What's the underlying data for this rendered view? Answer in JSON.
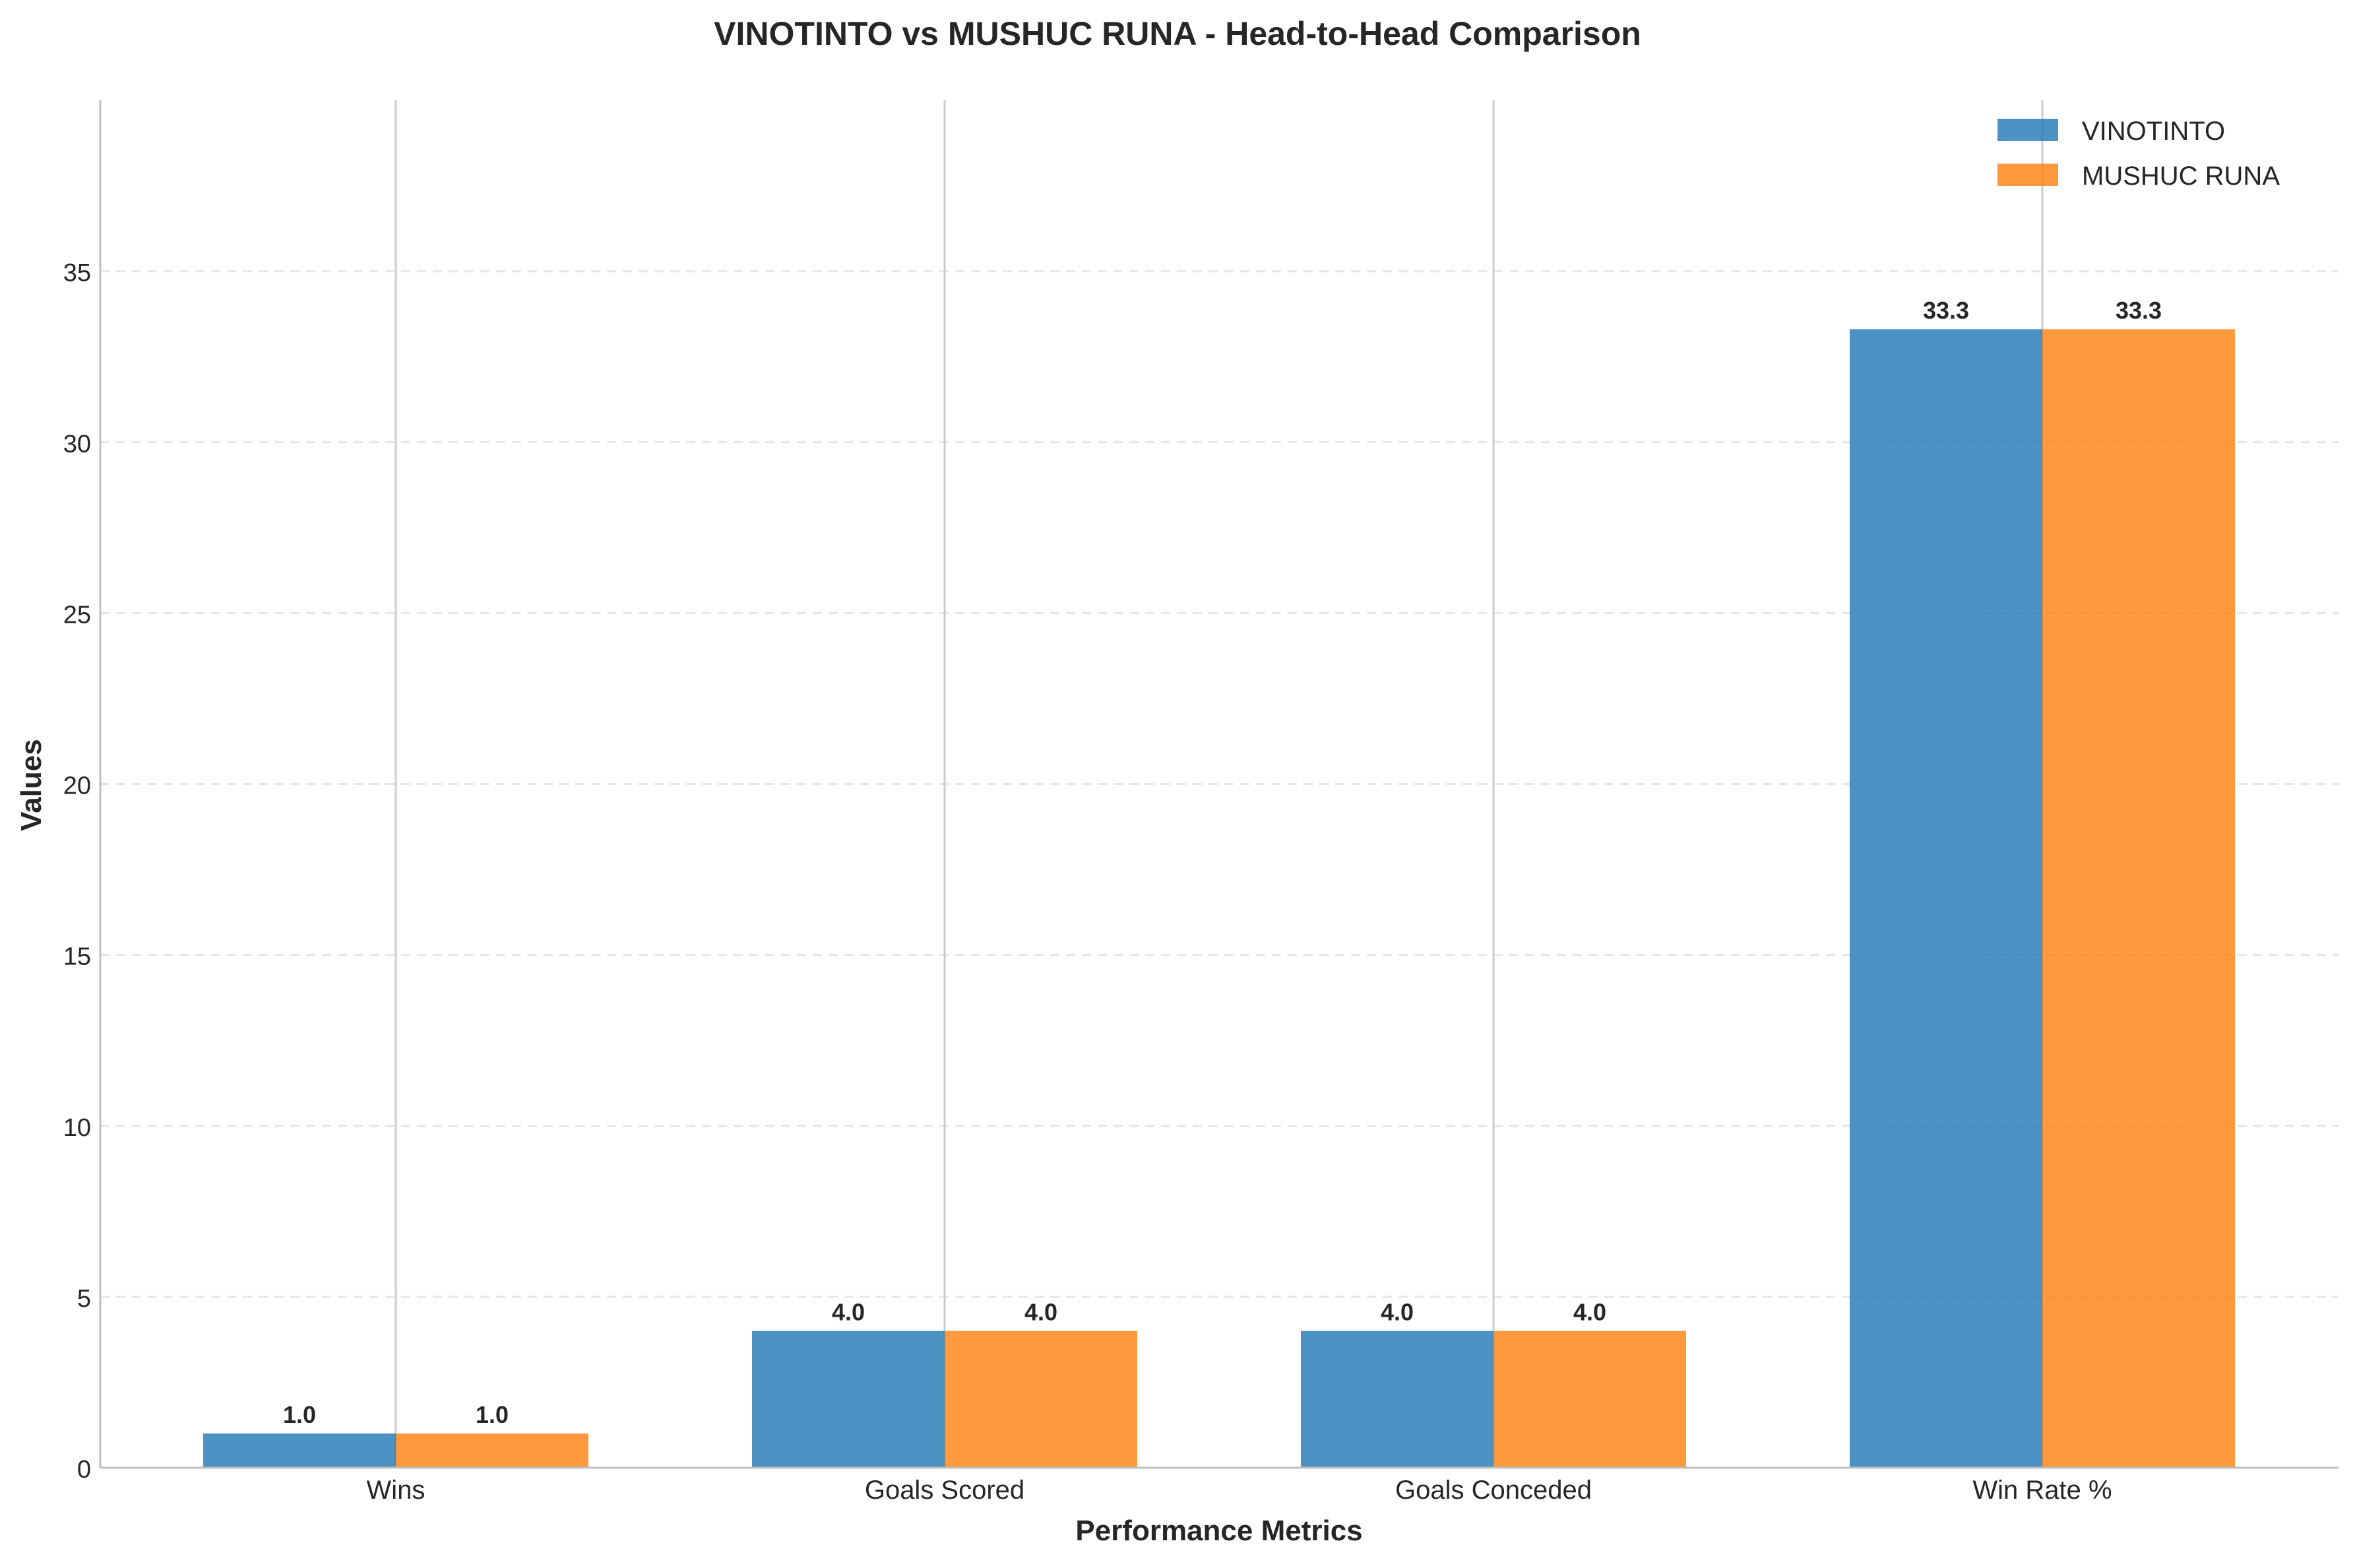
{
  "chart_data": {
    "type": "bar",
    "title": "VINOTINTO vs MUSHUC RUNA - Head-to-Head Comparison",
    "xlabel": "Performance Metrics",
    "ylabel": "Values",
    "categories": [
      "Wins",
      "Goals Scored",
      "Goals Conceded",
      "Win Rate %"
    ],
    "series": [
      {
        "name": "VINOTINTO",
        "values": [
          1.0,
          4.0,
          4.0,
          33.3
        ],
        "color": "#1f77b4"
      },
      {
        "name": "MUSHUC RUNA",
        "values": [
          1.0,
          4.0,
          4.0,
          33.3
        ],
        "color": "#ff7f0e"
      }
    ],
    "ylim": [
      0,
      40
    ],
    "yticks": [
      0,
      5,
      10,
      15,
      20,
      25,
      30,
      35
    ],
    "grid": true,
    "legend": "top-right",
    "value_labels": true
  }
}
